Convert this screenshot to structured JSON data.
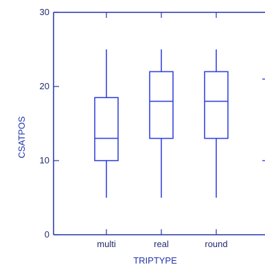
{
  "chart_data": {
    "type": "box",
    "xlabel": "TRIPTYPE",
    "ylabel": "CSATPOS",
    "ylim": [
      0,
      30
    ],
    "yticks": [
      "0",
      "10",
      "20",
      "30"
    ],
    "categories": [
      "multi",
      "real",
      "round",
      ""
    ],
    "boxes": [
      {
        "category": "multi",
        "min": 5,
        "q1": 10,
        "median": 13,
        "q3": 18.5,
        "max": 25
      },
      {
        "category": "real",
        "min": 5,
        "q1": 13,
        "median": 18,
        "q3": 22,
        "max": 25
      },
      {
        "category": "round",
        "min": 5,
        "q1": 13,
        "median": 18,
        "q3": 22,
        "max": 25
      },
      {
        "category": "",
        "min": 10,
        "q1": null,
        "median": null,
        "q3": 21,
        "max": null
      }
    ],
    "colors": {
      "box": "#3344dd",
      "axis": "#2233aa",
      "text": "#222a6e"
    }
  }
}
